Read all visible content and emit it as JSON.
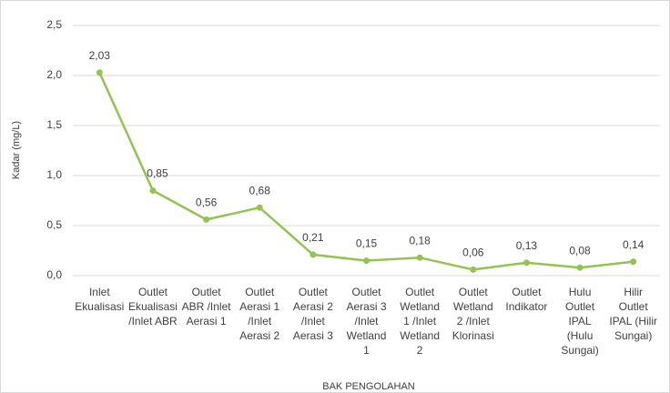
{
  "chart_data": {
    "type": "line",
    "x_label": "BAK PENGOLAHAN",
    "y_label": "Kadar (mg/L)",
    "categories": [
      "Inlet\nEkualisasi",
      "Outlet\nEkualisasi\n/Inlet ABR",
      "Outlet\nABR /Inlet\nAerasi 1",
      "Outlet\nAerasi 1\n/Inlet\nAerasi 2",
      "Outlet\nAerasi 2\n/Inlet\nAerasi 3",
      "Outlet\nAerasi 3\n/Inlet\nWetland\n1",
      "Outlet\nWetland\n1 /Inlet\nWetland\n2",
      "Outlet\nWetland\n2 /Inlet\nKlorinasi",
      "Outlet\nIndikator",
      "Hulu\nOutlet\nIPAL\n(Hulu\nSungai)",
      "Hilir\nOutlet\nIPAL (Hilir\nSungai)"
    ],
    "values": [
      2.03,
      0.85,
      0.56,
      0.68,
      0.21,
      0.15,
      0.18,
      0.06,
      0.13,
      0.08,
      0.14
    ],
    "value_labels": [
      "2,03",
      "0,85",
      "0,56",
      "0,68",
      "0,21",
      "0,15",
      "0,18",
      "0,06",
      "0,13",
      "0,08",
      "0,14"
    ],
    "color": "#92c353",
    "ylim": [
      0,
      2.5
    ],
    "yticks": [
      {
        "value": 0,
        "label": "0,0"
      },
      {
        "value": 0.5,
        "label": "0,5"
      },
      {
        "value": 1,
        "label": "1,0"
      },
      {
        "value": 1.5,
        "label": "1,5"
      },
      {
        "value": 2,
        "label": "2,0"
      },
      {
        "value": 2.5,
        "label": "2,5"
      }
    ],
    "grid": true
  }
}
